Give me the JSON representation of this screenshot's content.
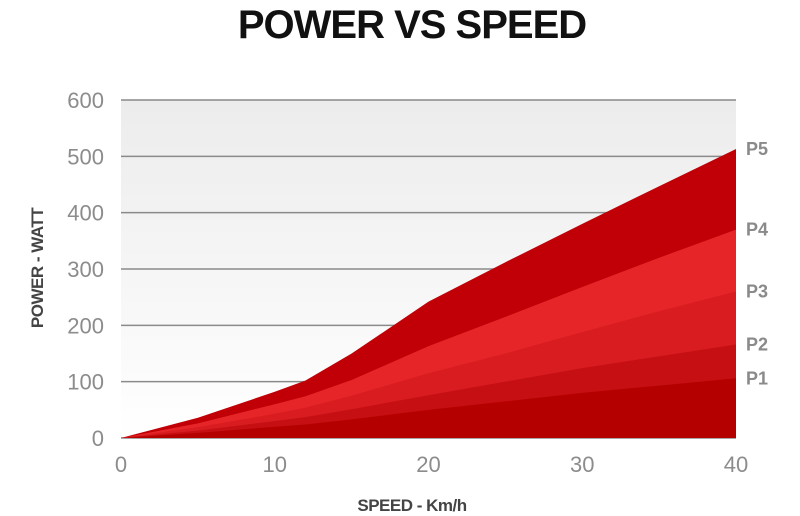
{
  "chart_data": {
    "type": "area",
    "title": "POWER VS SPEED",
    "xlabel": "SPEED - Km/h",
    "ylabel": "POWER - WATT",
    "xlim": [
      0,
      40
    ],
    "ylim": [
      0,
      600
    ],
    "xticks": [
      "0",
      "10",
      "20",
      "30",
      "40"
    ],
    "yticks": [
      "0",
      "100",
      "200",
      "300",
      "400",
      "500",
      "600"
    ],
    "grid": "horizontal",
    "x": [
      0,
      5,
      10,
      12,
      15,
      20,
      25,
      30,
      35,
      40
    ],
    "series": [
      {
        "name": "P1",
        "color": "#b50000",
        "values": [
          0,
          9,
          20,
          24,
          33,
          50,
          65,
          80,
          93,
          106
        ]
      },
      {
        "name": "P2",
        "color": "#c50f12",
        "values": [
          0,
          13,
          30,
          37,
          51,
          76,
          100,
          124,
          145,
          166
        ]
      },
      {
        "name": "P3",
        "color": "#d81c20",
        "values": [
          0,
          19,
          43,
          54,
          75,
          115,
          150,
          188,
          225,
          260
        ]
      },
      {
        "name": "P4",
        "color": "#e62528",
        "values": [
          0,
          26,
          60,
          74,
          103,
          163,
          215,
          268,
          320,
          370
        ]
      },
      {
        "name": "P5",
        "color": "#c00006",
        "values": [
          0,
          36,
          82,
          102,
          150,
          242,
          312,
          380,
          447,
          513
        ]
      }
    ],
    "colors": {
      "background_gradient_top": "#ececec",
      "background_gradient_bottom": "#ffffff",
      "gridline": "#8a8a8a"
    }
  }
}
